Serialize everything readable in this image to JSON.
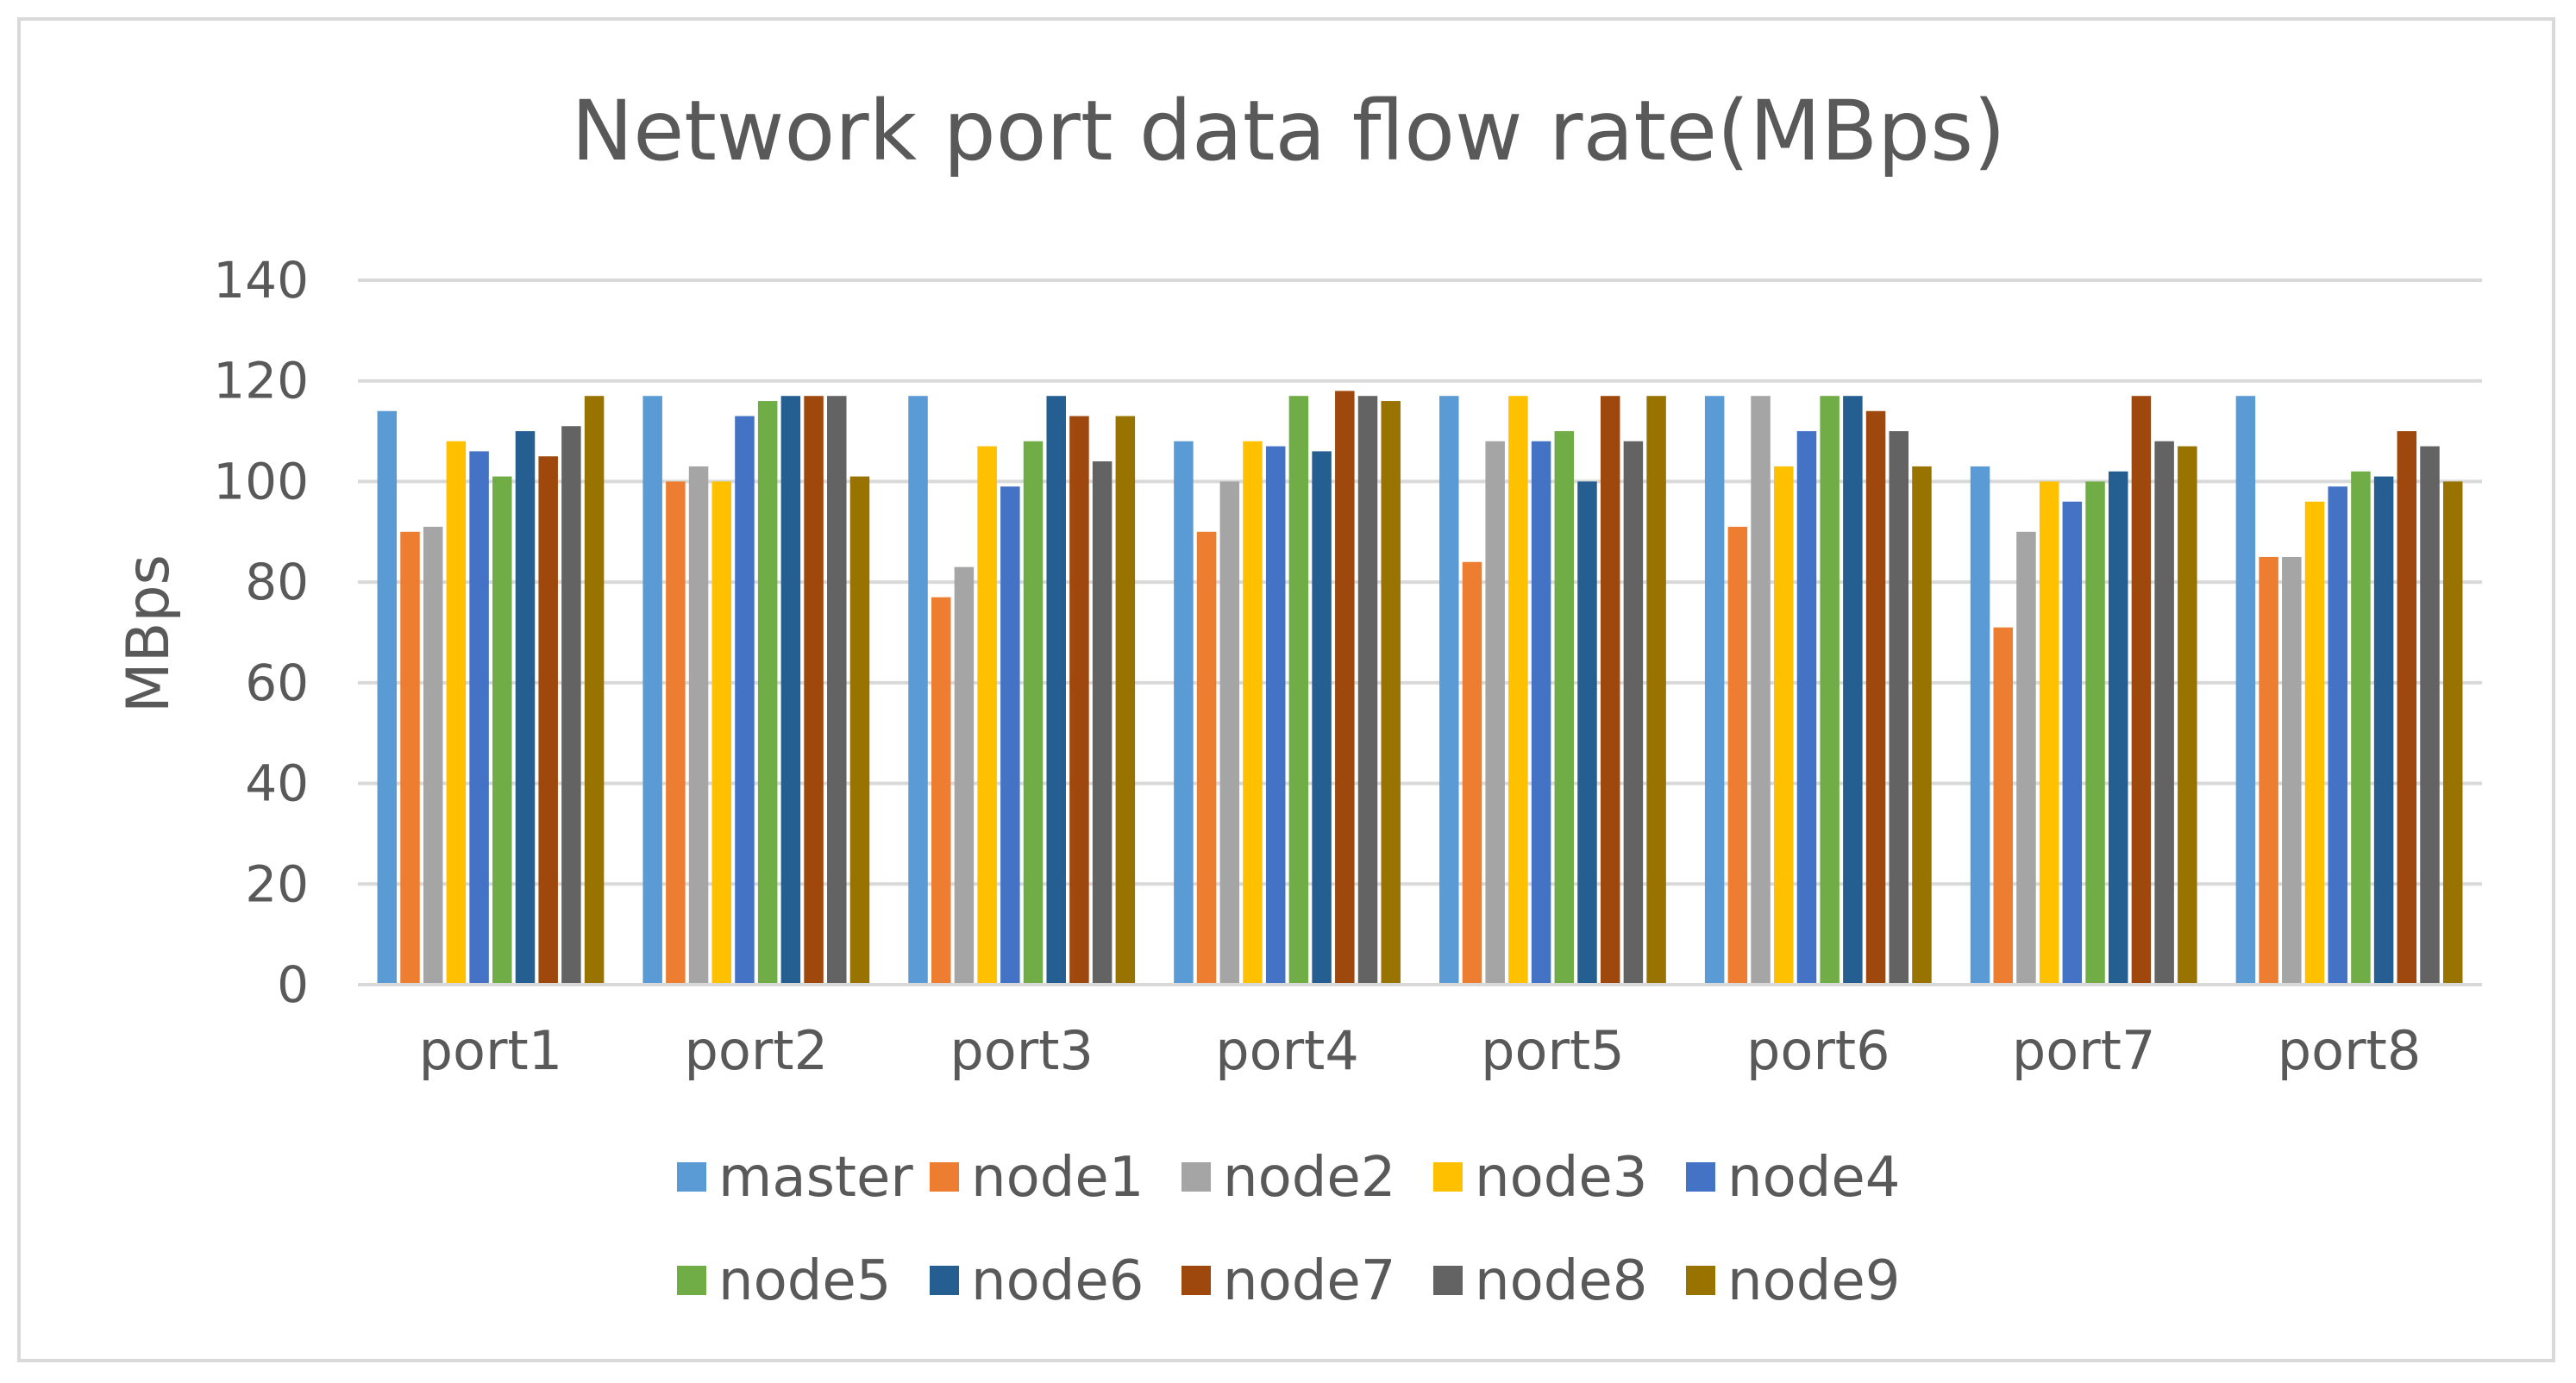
{
  "chart_data": {
    "type": "bar",
    "title": "Network port data flow rate(MBps)",
    "xlabel": "",
    "ylabel": "MBps",
    "ylim": [
      0,
      140
    ],
    "yticks": [
      0,
      20,
      40,
      60,
      80,
      100,
      120,
      140
    ],
    "grid": true,
    "legend_position": "bottom",
    "categories": [
      "port1",
      "port2",
      "port3",
      "port4",
      "port5",
      "port6",
      "port7",
      "port8"
    ],
    "series": [
      {
        "name": "master",
        "color": "#5b9bd5",
        "values": [
          114,
          117,
          117,
          108,
          117,
          117,
          103,
          117
        ]
      },
      {
        "name": "node1",
        "color": "#ed7d31",
        "values": [
          90,
          100,
          77,
          90,
          84,
          91,
          71,
          85
        ]
      },
      {
        "name": "node2",
        "color": "#a5a5a5",
        "values": [
          91,
          103,
          83,
          100,
          108,
          117,
          90,
          85
        ]
      },
      {
        "name": "node3",
        "color": "#ffc000",
        "values": [
          108,
          100,
          107,
          108,
          117,
          103,
          100,
          96
        ]
      },
      {
        "name": "node4",
        "color": "#4472c4",
        "values": [
          106,
          113,
          99,
          107,
          108,
          110,
          96,
          99
        ]
      },
      {
        "name": "node5",
        "color": "#70ad47",
        "values": [
          101,
          116,
          108,
          117,
          110,
          117,
          100,
          102
        ]
      },
      {
        "name": "node6",
        "color": "#255e91",
        "values": [
          110,
          117,
          117,
          106,
          100,
          117,
          102,
          101
        ]
      },
      {
        "name": "node7",
        "color": "#9e480e",
        "values": [
          105,
          117,
          113,
          118,
          117,
          114,
          117,
          110
        ]
      },
      {
        "name": "node8",
        "color": "#636363",
        "values": [
          111,
          117,
          104,
          117,
          108,
          110,
          108,
          107
        ]
      },
      {
        "name": "node9",
        "color": "#997300",
        "values": [
          117,
          101,
          113,
          116,
          117,
          103,
          107,
          100
        ]
      }
    ]
  }
}
